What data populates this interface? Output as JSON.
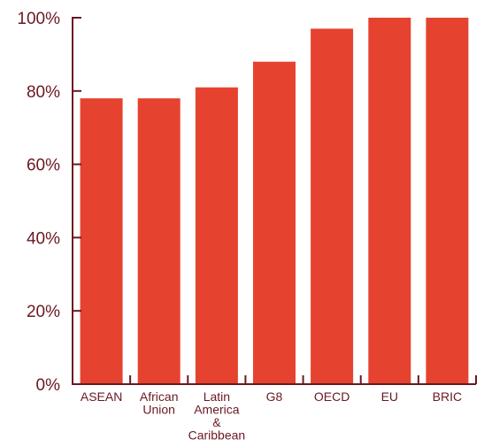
{
  "chart_data": {
    "type": "bar",
    "categories": [
      [
        "ASEAN"
      ],
      [
        "African",
        "Union"
      ],
      [
        "Latin",
        "America",
        "&",
        "Caribbean"
      ],
      [
        "G8"
      ],
      [
        "OECD"
      ],
      [
        "EU"
      ],
      [
        "BRIC"
      ]
    ],
    "values": [
      78,
      78,
      81,
      88,
      97,
      100,
      100
    ],
    "ylim": [
      0,
      100
    ],
    "yticks": [
      0,
      20,
      40,
      60,
      80,
      100
    ],
    "ytick_labels": [
      "0%",
      "20%",
      "40%",
      "60%",
      "80%",
      "100%"
    ],
    "grid": false,
    "bar_color": "#e5432f",
    "axis_color": "#6a1820",
    "text_color": "#6a1820"
  }
}
